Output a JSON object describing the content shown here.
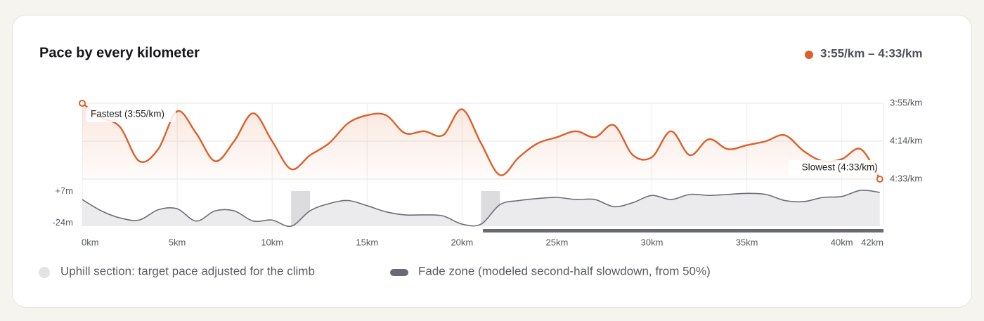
{
  "chart_data": {
    "type": "line",
    "title": "Pace by every kilometer",
    "x": [
      0,
      1,
      2,
      3,
      4,
      5,
      6,
      7,
      8,
      9,
      10,
      11,
      12,
      13,
      14,
      15,
      16,
      17,
      18,
      19,
      20,
      21,
      22,
      23,
      24,
      25,
      26,
      27,
      28,
      29,
      30,
      31,
      32,
      33,
      34,
      35,
      36,
      37,
      38,
      39,
      40,
      41,
      42
    ],
    "xlim": [
      0,
      42.195
    ],
    "xticks": [
      {
        "value": 0,
        "label": "0km"
      },
      {
        "value": 5,
        "label": "5km"
      },
      {
        "value": 10,
        "label": "10km"
      },
      {
        "value": 15,
        "label": "15km"
      },
      {
        "value": 20,
        "label": "20km"
      },
      {
        "value": 25,
        "label": "25km"
      },
      {
        "value": 30,
        "label": "30km"
      },
      {
        "value": 35,
        "label": "35km"
      },
      {
        "value": 40,
        "label": "40km"
      },
      {
        "value": 42.195,
        "label": "42km"
      }
    ],
    "ylim": [
      235,
      273
    ],
    "y_inverted": true,
    "yticks": [
      {
        "value": 235,
        "label": "3:55/km"
      },
      {
        "value": 254,
        "label": "4:14/km"
      },
      {
        "value": 273,
        "label": "4:33/km"
      }
    ],
    "y2lim": [
      -27,
      10
    ],
    "y2ticks": [
      {
        "value": 7,
        "label": "+7m"
      },
      {
        "value": -24,
        "label": "-24m"
      }
    ],
    "grid": true,
    "series": [
      {
        "name": "3:55/km – 4:33/km",
        "color": "#dd5f2a",
        "values": [
          235,
          242,
          247,
          264,
          258,
          239,
          250,
          264,
          254,
          240,
          254,
          268,
          261,
          255,
          245,
          241,
          241,
          250,
          249,
          251,
          238,
          255,
          271,
          262,
          255,
          252,
          249,
          252,
          246,
          261,
          262,
          249,
          261,
          253,
          258,
          256,
          254,
          251,
          259,
          264,
          263,
          258,
          273
        ]
      },
      {
        "axis": "y2",
        "color": "#6b6e76",
        "values": [
          -1,
          -12,
          -19,
          -21,
          -11,
          -10,
          -22,
          -12,
          -12,
          -22,
          -21,
          -27,
          -12,
          -5,
          -2,
          -7,
          -13,
          -16,
          -16,
          -17,
          -25,
          -25,
          -6,
          -2,
          0,
          1,
          -1,
          -1,
          -8,
          -4,
          3,
          -1,
          4,
          3,
          4,
          5,
          4,
          -2,
          -3,
          1,
          2,
          8,
          6
        ]
      }
    ],
    "annotations": [
      {
        "text": "Fastest (3:55/km)",
        "x": 0,
        "y": 235
      },
      {
        "text": "Slowest (4:33/km)",
        "x": 42,
        "y": 273
      }
    ],
    "uphill_sections": [
      {
        "start": 11,
        "end": 12
      },
      {
        "start": 21,
        "end": 22
      }
    ],
    "fade_zone": {
      "start": 21.1,
      "end": 42.195
    },
    "legend_notes": [
      "Uphill section: target pace adjusted for the climb",
      "Fade zone (modeled second-half slowdown, from 50%)"
    ]
  }
}
